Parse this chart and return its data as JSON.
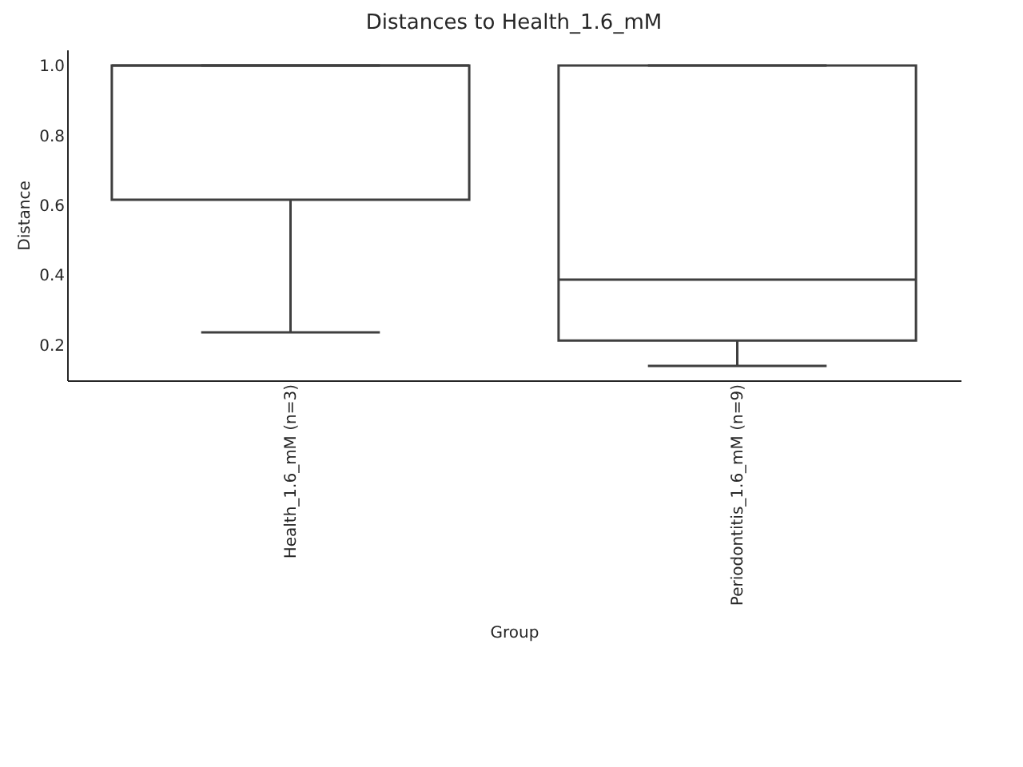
{
  "chart_data": {
    "type": "box",
    "title": "Distances to Health_1.6_mM",
    "xlabel": "Group",
    "ylabel": "Distance",
    "categories": [
      "Health_1.6_mM (n=3)",
      "Periodontitis_1.6_mM (n=9)"
    ],
    "boxes": [
      {
        "low": 0.236,
        "q1": 0.616,
        "median": 1.0,
        "q3": 1.0,
        "high": 1.0
      },
      {
        "low": 0.14,
        "q1": 0.213,
        "median": 0.387,
        "q3": 1.0,
        "high": 1.0
      }
    ],
    "ylim": [
      0.099,
      1.046
    ],
    "yticks": [
      0.2,
      0.4,
      0.6,
      0.8,
      {
        "value": 1,
        "label": "1.0"
      }
    ],
    "grid": false
  }
}
